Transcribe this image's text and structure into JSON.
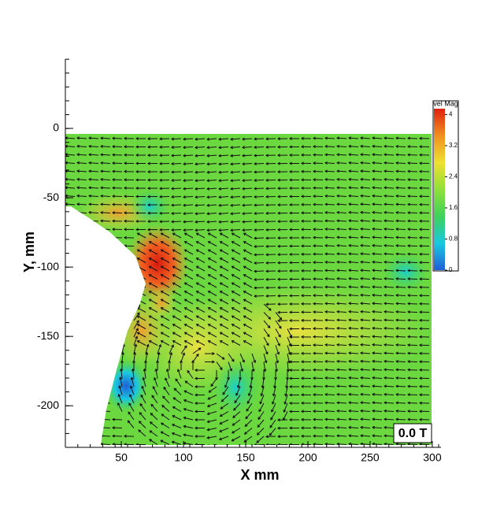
{
  "chart_data": {
    "type": "vector-contour",
    "x_label": "X mm",
    "y_label": "Y, mm",
    "xlim": [
      5,
      307
    ],
    "xticks": [
      50,
      100,
      150,
      200,
      250,
      300
    ],
    "ylim": [
      -230,
      50
    ],
    "yticks": [
      -200,
      -150,
      -100,
      -50,
      0
    ],
    "colorbar": {
      "title": "vel Mag",
      "lim": [
        0,
        4.15
      ],
      "ticks": [
        0,
        0.8,
        1.6,
        2.4,
        3.2,
        4
      ],
      "colormap": [
        "#1f5fd8",
        "#19c8e0",
        "#3ed25a",
        "#8fe03a",
        "#f0e030",
        "#f09020",
        "#e02010"
      ]
    },
    "annotation": "0.0 T"
  }
}
